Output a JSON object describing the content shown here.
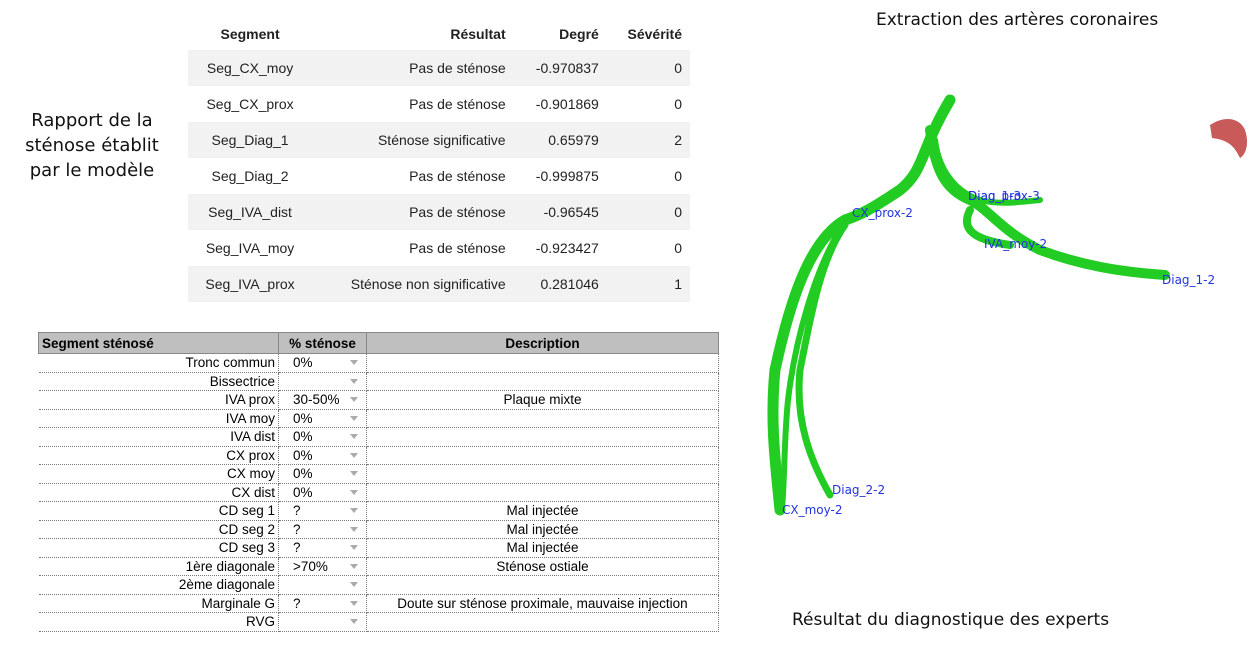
{
  "left_caption": {
    "lines": [
      "Rapport de la",
      "sténose établit",
      "par le modèle"
    ]
  },
  "model_table": {
    "header": [
      "Segment",
      "Résultat",
      "Degré",
      "Sévérité"
    ],
    "rows": [
      [
        "Seg_CX_moy",
        "Pas de sténose",
        "-0.970837",
        "0"
      ],
      [
        "Seg_CX_prox",
        "Pas de sténose",
        "-0.901869",
        "0"
      ],
      [
        "Seg_Diag_1",
        "Sténose significative",
        "0.65979",
        "2"
      ],
      [
        "Seg_Diag_2",
        "Pas de sténose",
        "-0.999875",
        "0"
      ],
      [
        "Seg_IVA_dist",
        "Pas de sténose",
        "-0.96545",
        "0"
      ],
      [
        "Seg_IVA_moy",
        "Pas de sténose",
        "-0.923427",
        "0"
      ],
      [
        "Seg_IVA_prox",
        "Sténose non significative",
        "0.281046",
        "1"
      ]
    ]
  },
  "expert_table": {
    "header": [
      "Segment sténosé",
      "% sténose",
      "Description"
    ],
    "rows": [
      {
        "segment": "Tronc commun",
        "stenose": "0%"
      },
      {
        "segment": "Bissectrice"
      },
      {
        "segment": "IVA prox",
        "stenose": "30-50%",
        "description": "Plaque mixte"
      },
      {
        "segment": "IVA moy",
        "stenose": "0%"
      },
      {
        "segment": "IVA dist",
        "stenose": "0%"
      },
      {
        "segment": "CX prox",
        "stenose": "0%"
      },
      {
        "segment": "CX moy",
        "stenose": "0%"
      },
      {
        "segment": "CX dist",
        "stenose": "0%"
      },
      {
        "segment": "CD seg 1",
        "stenose": "?",
        "description": "Mal injectée"
      },
      {
        "segment": "CD seg 2",
        "stenose": "?",
        "description": "Mal injectée"
      },
      {
        "segment": "CD seg 3",
        "stenose": "?",
        "description": "Mal injectée"
      },
      {
        "segment": "1ère diagonale",
        "stenose": ">70%",
        "description": "Sténose ostiale"
      },
      {
        "segment": "2ème diagonale"
      },
      {
        "segment": "Marginale G",
        "stenose": "?",
        "description": "Doute sur sténose proximale, mauvaise injection"
      },
      {
        "segment": "RVG"
      }
    ]
  },
  "right_panel": {
    "title": "Extraction des artères coronaires",
    "caption": "Résultat du diagnostique des experts",
    "labels": [
      "CX_prox-2",
      "Diag_prox-3",
      "Diag_1-3",
      "IVA_moy-2",
      "Diag_1-2",
      "Diag_2-2",
      "CX_moy-2"
    ]
  }
}
